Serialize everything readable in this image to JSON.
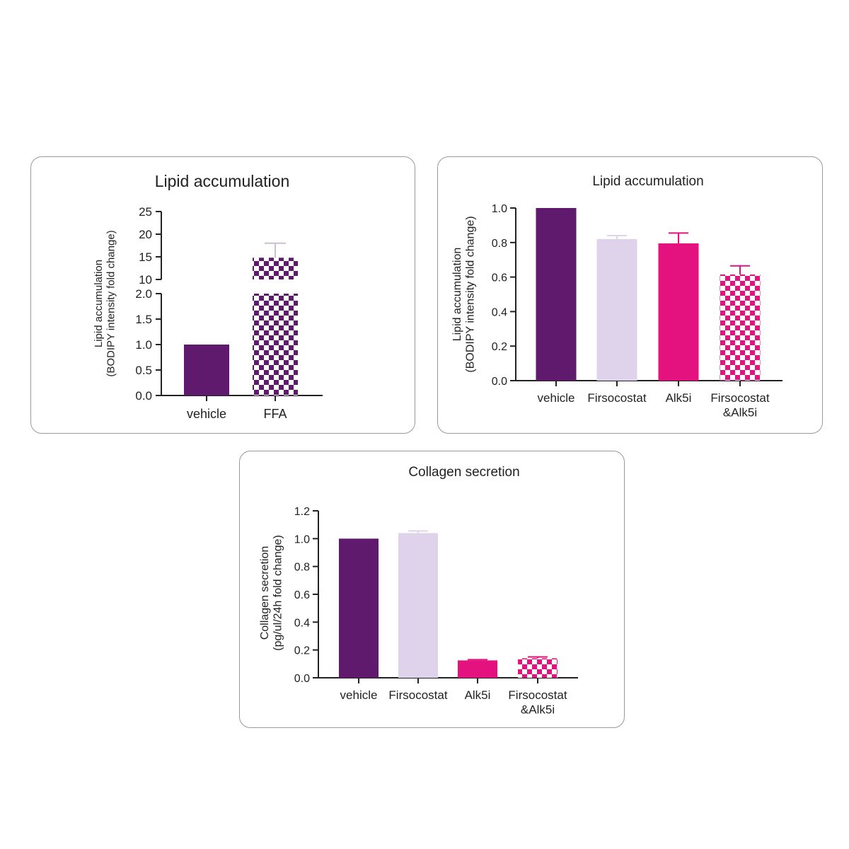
{
  "colors": {
    "vehicle": "#5f1a6e",
    "firsocostat": "#ded3ea",
    "alk5i": "#e3127e",
    "combo": "#e3127e",
    "ffa": "#5f1a6e",
    "axis": "#222222"
  },
  "chart_data": [
    {
      "id": "a",
      "type": "bar",
      "title": "Lipid accumulation",
      "ylabel_line1": "Lipid accumulation",
      "ylabel_line2": "(BODIPY intensity fold change)",
      "xlabel": "",
      "categories": [
        "vehicle",
        "FFA"
      ],
      "values": [
        1.0,
        14.8
      ],
      "errors": [
        0,
        3.2
      ],
      "patterns": [
        "solid",
        "checker"
      ],
      "color_keys": [
        "vehicle",
        "ffa"
      ],
      "broken_axis": true,
      "ylim_lower": [
        0,
        2.0
      ],
      "ylim_upper": [
        10,
        25
      ],
      "ticks_lower": [
        "0.0",
        "0.5",
        "1.0",
        "1.5",
        "2.0"
      ],
      "ticks_upper": [
        "10",
        "15",
        "20",
        "25"
      ]
    },
    {
      "id": "b",
      "type": "bar",
      "title": "Lipid accumulation",
      "ylabel_line1": "Lipid accumulation",
      "ylabel_line2": "(BODIPY intensity fold change)",
      "xlabel": "",
      "categories": [
        [
          "vehicle"
        ],
        [
          "Firsocostat"
        ],
        [
          "Alk5i"
        ],
        [
          "Firsocostat",
          "&Alk5i"
        ]
      ],
      "values": [
        1.0,
        0.82,
        0.795,
        0.615
      ],
      "errors": [
        0,
        0.02,
        0.06,
        0.05
      ],
      "patterns": [
        "solid",
        "solid",
        "solid",
        "checker"
      ],
      "color_keys": [
        "vehicle",
        "firsocostat",
        "alk5i",
        "combo"
      ],
      "ylim": [
        0,
        1.0
      ],
      "ticks": [
        "0.0",
        "0.2",
        "0.4",
        "0.6",
        "0.8",
        "1.0"
      ]
    },
    {
      "id": "c",
      "type": "bar",
      "title": "Collagen secretion",
      "ylabel_line1": "Collagen secretion",
      "ylabel_line2": "(pg/ul/24h fold change)",
      "xlabel": "",
      "categories": [
        [
          "vehicle"
        ],
        [
          "Firsocostat"
        ],
        [
          "Alk5i"
        ],
        [
          "Firsocostat",
          "&Alk5i"
        ]
      ],
      "values": [
        1.0,
        1.04,
        0.125,
        0.14
      ],
      "errors": [
        0,
        0.015,
        0.005,
        0.01
      ],
      "patterns": [
        "solid",
        "solid",
        "solid",
        "checker"
      ],
      "color_keys": [
        "vehicle",
        "firsocostat",
        "alk5i",
        "combo"
      ],
      "ylim": [
        0,
        1.2
      ],
      "ticks": [
        "0.0",
        "0.2",
        "0.4",
        "0.6",
        "0.8",
        "1.0",
        "1.2"
      ]
    }
  ]
}
